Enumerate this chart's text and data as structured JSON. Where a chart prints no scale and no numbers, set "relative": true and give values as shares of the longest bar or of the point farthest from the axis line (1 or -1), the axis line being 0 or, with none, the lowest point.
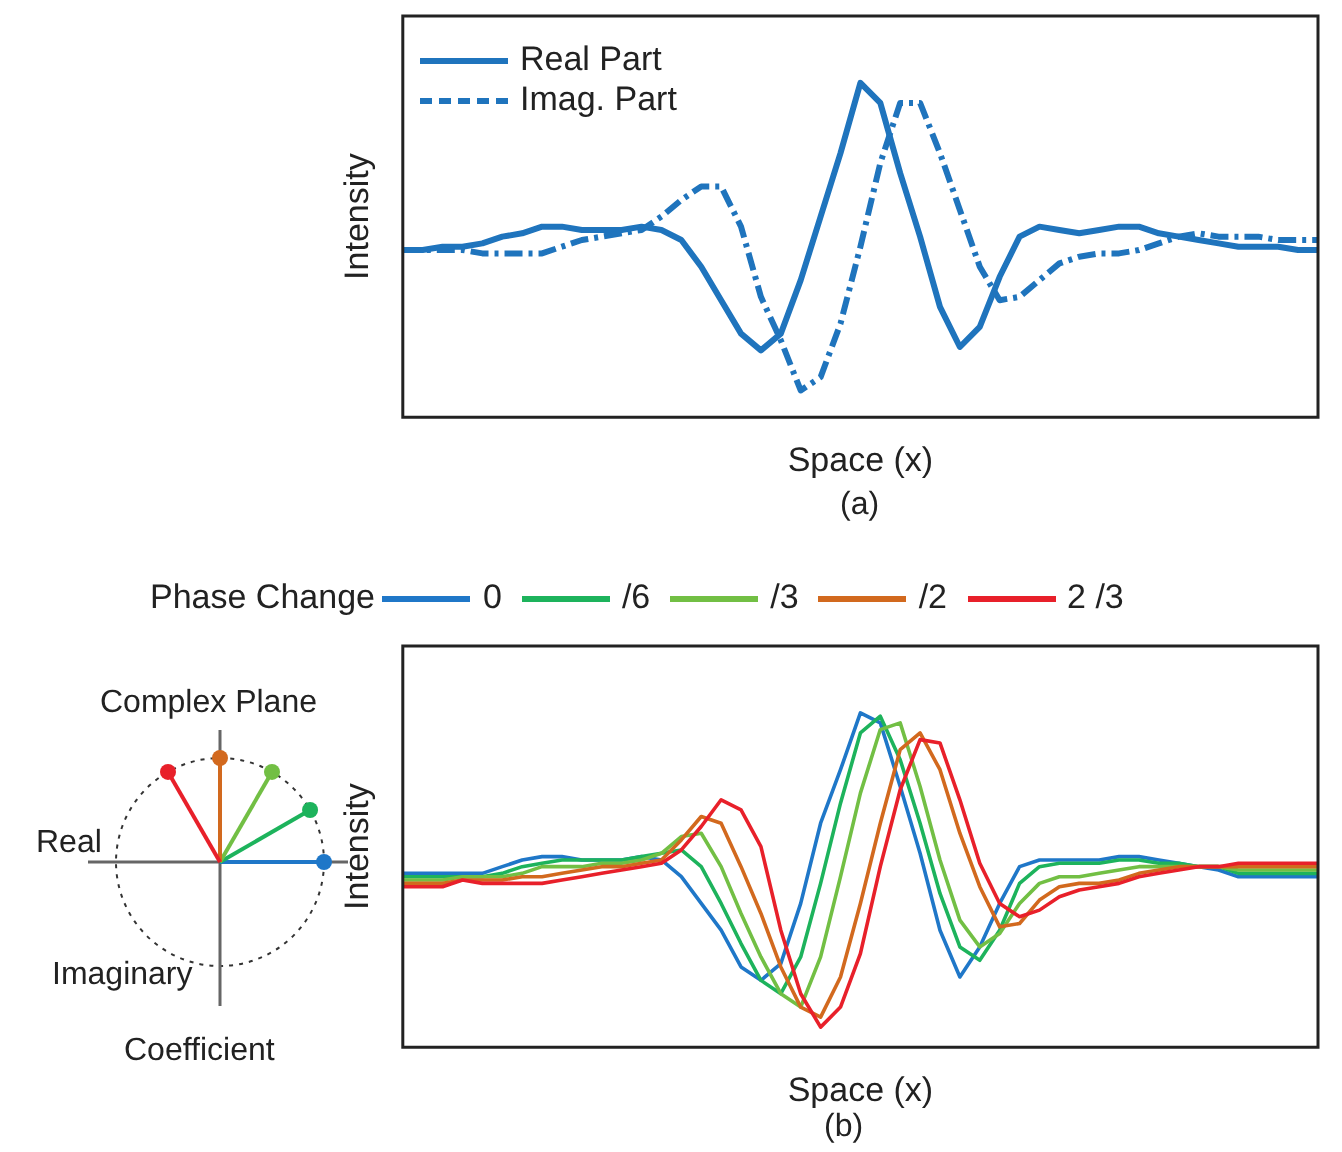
{
  "chart_data": [
    {
      "type": "line",
      "xlabel": "Space (x)",
      "ylabel": "Intensity",
      "relative": true,
      "legend": "top left",
      "annotations": [
        "(a)"
      ],
      "categories": [
        null,
        null,
        null,
        null,
        null,
        null,
        null,
        null,
        null,
        null,
        null,
        null,
        null,
        null,
        null,
        null,
        null,
        null,
        null,
        null,
        null,
        null,
        null,
        null,
        null,
        null,
        null,
        null,
        null,
        null,
        null,
        null,
        null,
        null,
        null,
        null,
        null,
        null,
        null,
        null,
        null,
        null,
        null,
        null,
        null,
        null,
        null
      ],
      "series": [
        {
          "name": "Real Part",
          "color": "#1f74bd",
          "line_style": "solid",
          "values": [
            0.5,
            0.5,
            0.51,
            0.51,
            0.52,
            0.54,
            0.55,
            0.57,
            0.57,
            0.56,
            0.56,
            0.56,
            0.57,
            0.56,
            0.53,
            0.45,
            0.35,
            0.25,
            0.2,
            0.25,
            0.41,
            0.6,
            0.79,
            1,
            0.94,
            0.73,
            0.54,
            0.33,
            0.21,
            0.27,
            0.42,
            0.54,
            0.57,
            0.56,
            0.55,
            0.56,
            0.57,
            0.57,
            0.55,
            0.54,
            0.53,
            0.52,
            0.51,
            0.51,
            0.51,
            0.5,
            0.5
          ]
        },
        {
          "name": "Imag. Part",
          "color": "#1f74bd",
          "line_style": "dashed",
          "values": [
            0.5,
            0.5,
            0.5,
            0.5,
            0.49,
            0.49,
            0.49,
            0.49,
            0.51,
            0.53,
            0.54,
            0.55,
            0.56,
            0.6,
            0.65,
            0.69,
            0.69,
            0.57,
            0.36,
            0.23,
            0.08,
            0.12,
            0.28,
            0.51,
            0.76,
            0.94,
            0.94,
            0.79,
            0.62,
            0.45,
            0.35,
            0.36,
            0.41,
            0.46,
            0.48,
            0.49,
            0.49,
            0.5,
            0.52,
            0.54,
            0.55,
            0.54,
            0.54,
            0.54,
            0.53,
            0.53,
            0.53
          ]
        }
      ]
    },
    {
      "type": "line",
      "xlabel": "Space (x)",
      "ylabel": "Intensity",
      "relative": true,
      "legend": "top",
      "legend_title": "Phase Change",
      "annotations": [
        "Complex Plane",
        "Real",
        "Imaginary",
        "Coefficient",
        "(b)"
      ],
      "categories": [
        null,
        null,
        null,
        null,
        null,
        null,
        null,
        null,
        null,
        null,
        null,
        null,
        null,
        null,
        null,
        null,
        null,
        null,
        null,
        null,
        null,
        null,
        null,
        null,
        null,
        null,
        null,
        null,
        null,
        null,
        null,
        null,
        null,
        null,
        null,
        null,
        null,
        null,
        null,
        null,
        null,
        null,
        null,
        null,
        null,
        null,
        null
      ],
      "series": [
        {
          "name": "0",
          "color": "#1f77c8",
          "values": [
            0.52,
            0.52,
            0.52,
            0.52,
            0.52,
            0.54,
            0.56,
            0.57,
            0.57,
            0.56,
            0.56,
            0.56,
            0.57,
            0.56,
            0.51,
            0.43,
            0.35,
            0.24,
            0.2,
            0.25,
            0.43,
            0.67,
            0.83,
            1,
            0.97,
            0.78,
            0.58,
            0.35,
            0.21,
            0.3,
            0.43,
            0.54,
            0.56,
            0.56,
            0.56,
            0.56,
            0.57,
            0.57,
            0.56,
            0.55,
            0.54,
            0.53,
            0.51,
            0.51,
            0.51,
            0.51,
            0.51
          ]
        },
        {
          "name": "/6",
          "color": "#1db35c",
          "values": [
            0.51,
            0.51,
            0.51,
            0.51,
            0.51,
            0.52,
            0.54,
            0.55,
            0.56,
            0.56,
            0.56,
            0.56,
            0.57,
            0.58,
            0.59,
            0.54,
            0.43,
            0.31,
            0.2,
            0.16,
            0.27,
            0.49,
            0.73,
            0.94,
            0.99,
            0.86,
            0.67,
            0.46,
            0.3,
            0.26,
            0.35,
            0.49,
            0.54,
            0.55,
            0.55,
            0.55,
            0.56,
            0.56,
            0.55,
            0.55,
            0.54,
            0.54,
            0.52,
            0.52,
            0.52,
            0.52,
            0.52
          ]
        },
        {
          "name": "/3",
          "color": "#72bf44",
          "values": [
            0.5,
            0.5,
            0.5,
            0.51,
            0.51,
            0.51,
            0.52,
            0.54,
            0.54,
            0.54,
            0.55,
            0.55,
            0.56,
            0.58,
            0.63,
            0.64,
            0.54,
            0.4,
            0.27,
            0.16,
            0.12,
            0.27,
            0.51,
            0.76,
            0.95,
            0.97,
            0.78,
            0.56,
            0.38,
            0.3,
            0.34,
            0.43,
            0.49,
            0.51,
            0.51,
            0.52,
            0.53,
            0.54,
            0.54,
            0.54,
            0.54,
            0.54,
            0.53,
            0.53,
            0.53,
            0.53,
            0.53
          ]
        },
        {
          "name": "/2",
          "color": "#d2691e",
          "values": [
            0.49,
            0.49,
            0.49,
            0.5,
            0.5,
            0.5,
            0.51,
            0.51,
            0.52,
            0.53,
            0.54,
            0.54,
            0.55,
            0.56,
            0.62,
            0.69,
            0.67,
            0.54,
            0.4,
            0.24,
            0.12,
            0.09,
            0.21,
            0.43,
            0.67,
            0.89,
            0.94,
            0.83,
            0.64,
            0.48,
            0.36,
            0.37,
            0.44,
            0.48,
            0.49,
            0.49,
            0.5,
            0.52,
            0.53,
            0.54,
            0.54,
            0.54,
            0.54,
            0.54,
            0.54,
            0.54,
            0.54
          ]
        },
        {
          "name": "2 /3",
          "color": "#e8202a",
          "values": [
            0.48,
            0.48,
            0.48,
            0.5,
            0.49,
            0.49,
            0.49,
            0.49,
            0.5,
            0.51,
            0.52,
            0.53,
            0.54,
            0.55,
            0.59,
            0.66,
            0.74,
            0.71,
            0.6,
            0.35,
            0.16,
            0.06,
            0.12,
            0.28,
            0.54,
            0.77,
            0.92,
            0.91,
            0.74,
            0.55,
            0.43,
            0.39,
            0.41,
            0.45,
            0.47,
            0.48,
            0.49,
            0.51,
            0.52,
            0.53,
            0.54,
            0.54,
            0.55,
            0.55,
            0.55,
            0.55,
            0.55
          ]
        }
      ]
    }
  ]
}
